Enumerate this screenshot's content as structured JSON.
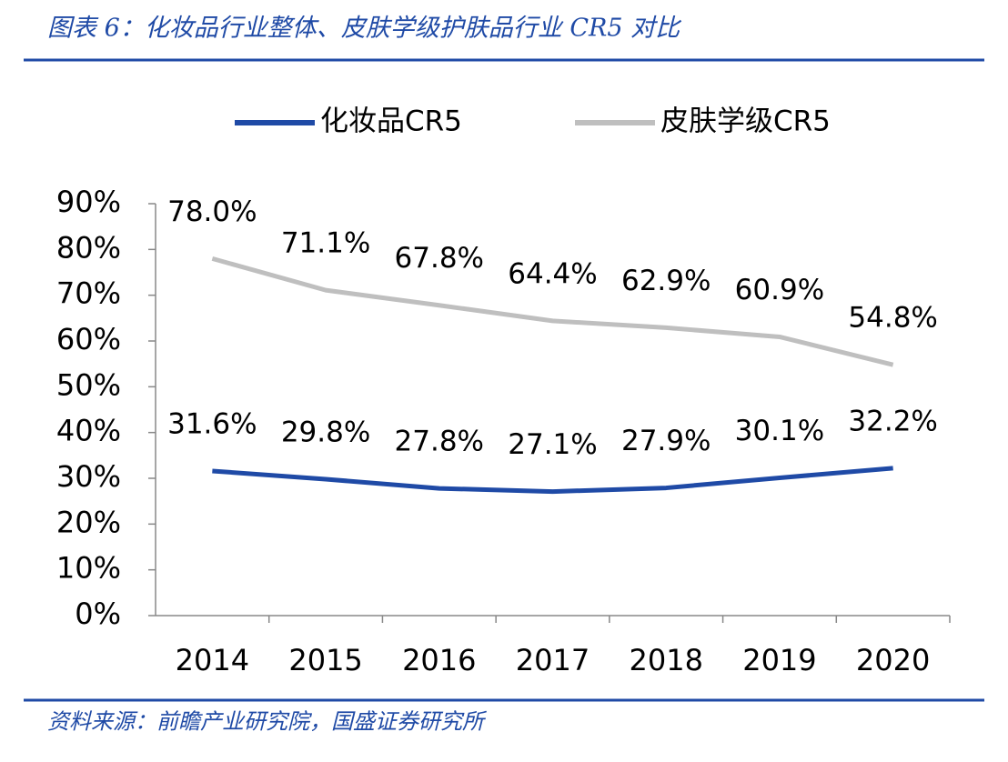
{
  "chart_data": {
    "type": "line",
    "title": "图表 6：化妆品行业整体、皮肤学级护肤品行业 CR5 对比",
    "source": "资料来源：前瞻产业研究院，国盛证券研究所",
    "categories": [
      "2014",
      "2015",
      "2016",
      "2017",
      "2018",
      "2019",
      "2020"
    ],
    "series": [
      {
        "name": "化妆品CR5",
        "color": "#1f4aa6",
        "values": [
          31.6,
          29.8,
          27.8,
          27.1,
          27.9,
          30.1,
          32.2
        ],
        "value_labels": [
          "31.6%",
          "29.8%",
          "27.8%",
          "27.1%",
          "27.9%",
          "30.1%",
          "32.2%"
        ]
      },
      {
        "name": "皮肤学级CR5",
        "color": "#bfbfbf",
        "values": [
          78.0,
          71.1,
          67.8,
          64.4,
          62.9,
          60.9,
          54.8
        ],
        "value_labels": [
          "78.0%",
          "71.1%",
          "67.8%",
          "64.4%",
          "62.9%",
          "60.9%",
          "54.8%"
        ]
      }
    ],
    "ylim": [
      0,
      90
    ],
    "yticks": [
      {
        "value": 0,
        "label": "0%"
      },
      {
        "value": 10,
        "label": "10%"
      },
      {
        "value": 20,
        "label": "20%"
      },
      {
        "value": 30,
        "label": "30%"
      },
      {
        "value": 40,
        "label": "40%"
      },
      {
        "value": 50,
        "label": "50%"
      },
      {
        "value": 60,
        "label": "60%"
      },
      {
        "value": 70,
        "label": "70%"
      },
      {
        "value": 80,
        "label": "80%"
      },
      {
        "value": 90,
        "label": "90%"
      }
    ],
    "legend": "top"
  }
}
